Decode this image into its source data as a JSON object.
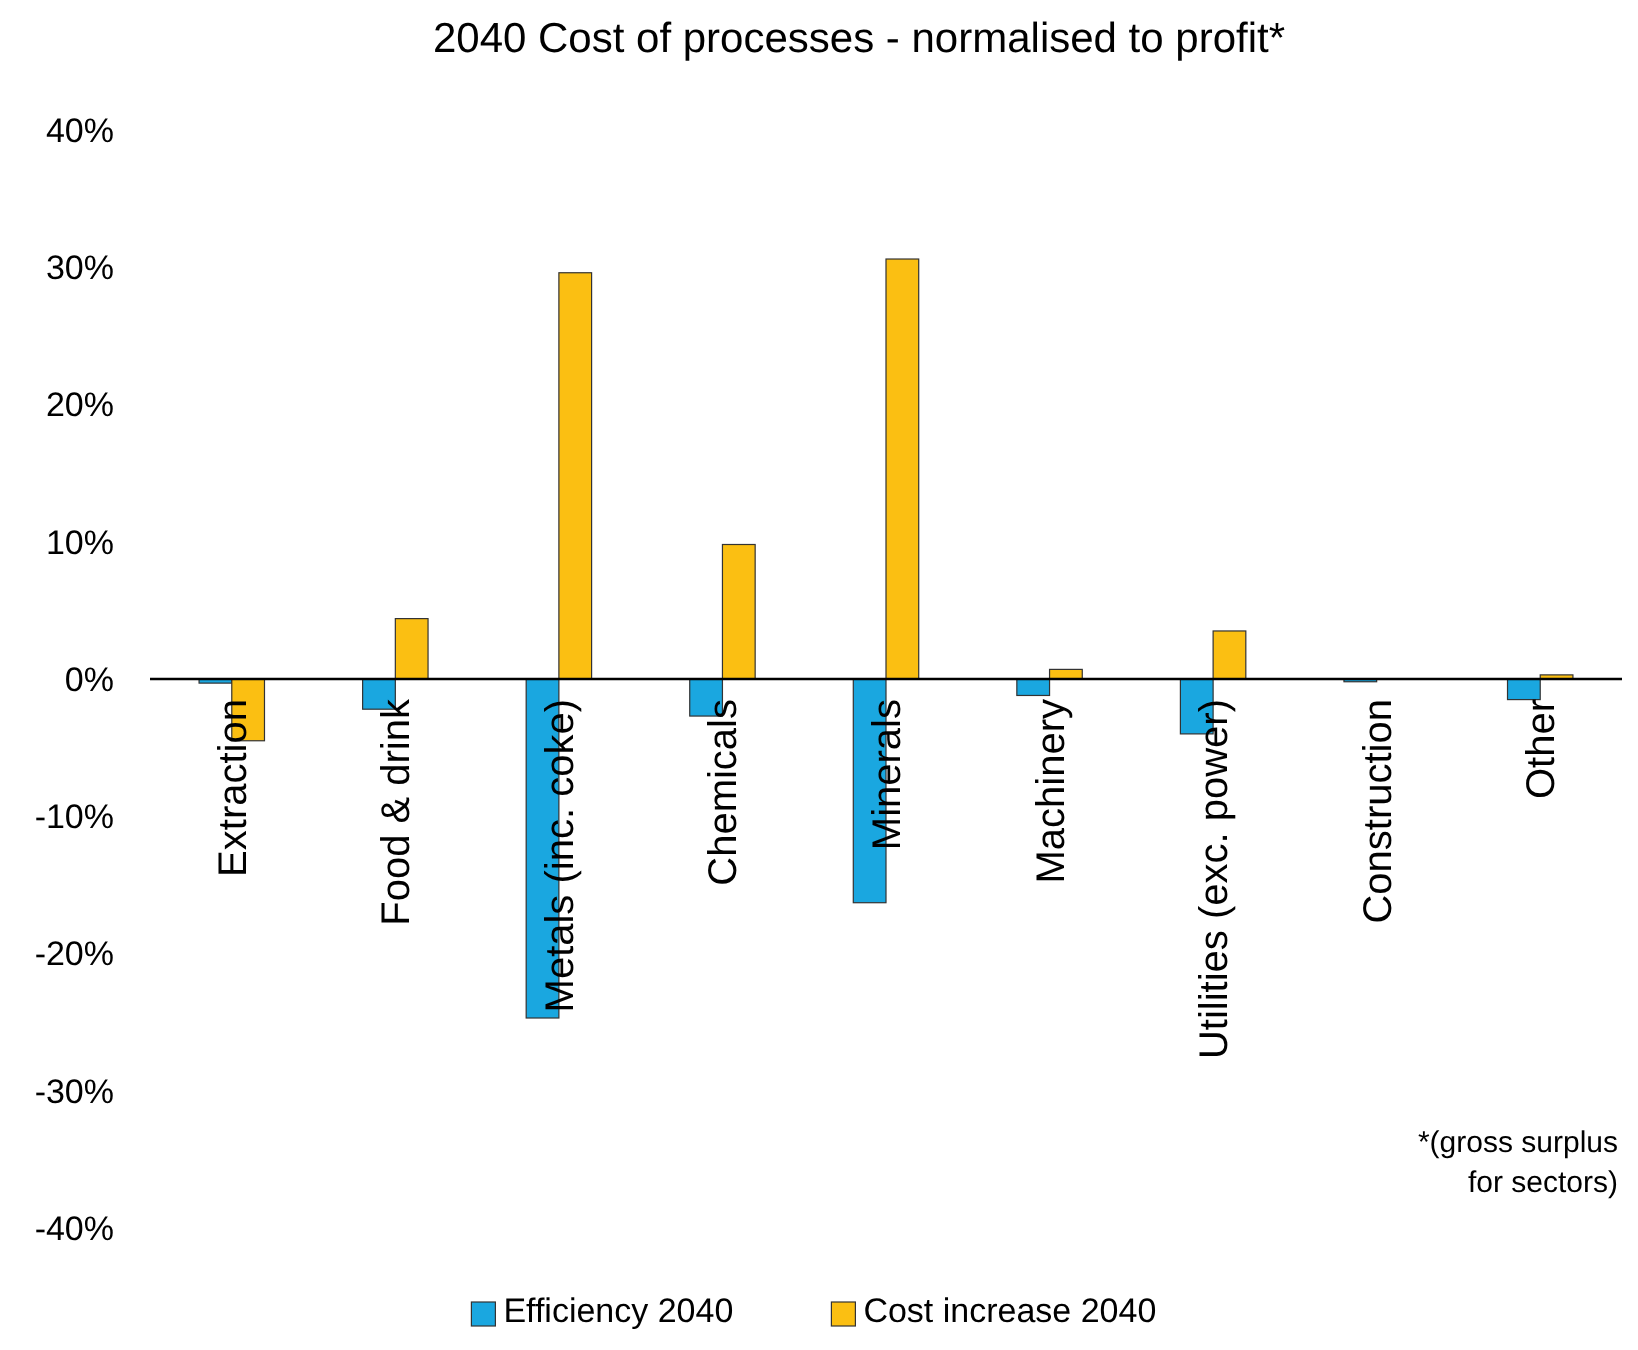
{
  "chart_data": {
    "type": "bar",
    "title": "2040 Cost of processes - normalised to profit*",
    "categories": [
      "Extraction",
      "Food & drink",
      "Metals (inc. coke)",
      "Chemicals",
      "Minerals",
      "Machinery",
      "Utilities (exc. power)",
      "Construction",
      "Other"
    ],
    "series": [
      {
        "name": "Efficiency 2040",
        "color": "#1aa7e0",
        "values": [
          -0.3,
          -2.2,
          -24.7,
          -2.7,
          -16.3,
          -1.2,
          -4.0,
          -0.2,
          -1.5
        ]
      },
      {
        "name": "Cost increase 2040",
        "color": "#fbbf12",
        "values": [
          -4.5,
          4.4,
          29.6,
          9.8,
          30.6,
          0.7,
          3.5,
          0,
          0.3
        ]
      }
    ],
    "ylim": [
      -40,
      40
    ],
    "yticks": [
      {
        "value": -40,
        "label": "-40%"
      },
      {
        "value": -30,
        "label": "-30%"
      },
      {
        "value": -20,
        "label": "-20%"
      },
      {
        "value": -10,
        "label": "-10%"
      },
      {
        "value": 0,
        "label": "0%"
      },
      {
        "value": 10,
        "label": "10%"
      },
      {
        "value": 20,
        "label": "20%"
      },
      {
        "value": 30,
        "label": "30%"
      },
      {
        "value": 40,
        "label": "40%"
      }
    ],
    "grid": false,
    "legend": "bottom",
    "annotations": [
      "*(gross surplus for sectors)"
    ]
  }
}
